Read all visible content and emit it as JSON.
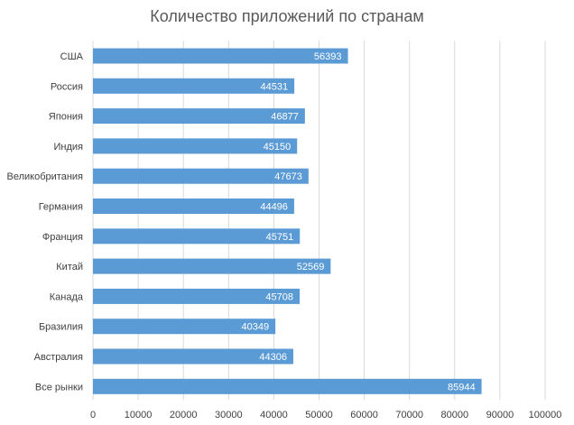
{
  "chart_data": {
    "type": "bar",
    "orientation": "horizontal",
    "title": "Количество приложений по странам",
    "categories": [
      "США",
      "Россия",
      "Япония",
      "Индия",
      "Великобритания",
      "Германия",
      "Франция",
      "Китай",
      "Канада",
      "Бразилия",
      "Австралия",
      "Все рынки"
    ],
    "values": [
      56393,
      44531,
      46877,
      45150,
      47673,
      44496,
      45751,
      52569,
      45708,
      40349,
      44306,
      85944
    ],
    "xlim": [
      0,
      100000
    ],
    "xticks": [
      0,
      10000,
      20000,
      30000,
      40000,
      50000,
      60000,
      70000,
      80000,
      90000,
      100000
    ],
    "grid": true,
    "legend": "none",
    "bar_color": "#5b9bd5",
    "data_labels": true
  }
}
